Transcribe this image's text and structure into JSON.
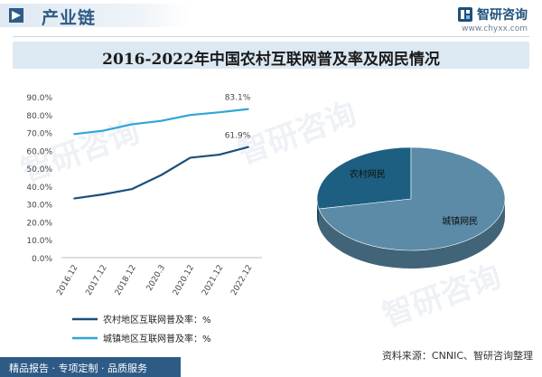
{
  "header": {
    "section_title": "产业链",
    "brand_name": "智研咨询",
    "brand_url": "www.chyxx.com"
  },
  "chart_data": [
    {
      "type": "line",
      "title": "2016-2022年中国农村互联网普及率及网民情况",
      "categories": [
        "2016.12",
        "2017.12",
        "2018.12",
        "2020.3",
        "2020.12",
        "2021.12",
        "2022.12"
      ],
      "ylim": [
        0,
        90
      ],
      "ytick_labels": [
        "0.0%",
        "10.0%",
        "20.0%",
        "30.0%",
        "40.0%",
        "50.0%",
        "60.0%",
        "70.0%",
        "80.0%",
        "90.0%"
      ],
      "series": [
        {
          "name": "农村地区互联网普及率：%",
          "values": [
            33.1,
            35.4,
            38.4,
            46.2,
            55.9,
            57.6,
            61.9
          ],
          "color": "#1b4f7a",
          "end_label": "61.9%"
        },
        {
          "name": "城镇地区互联网普及率：%",
          "values": [
            69.1,
            71.0,
            74.6,
            76.5,
            79.8,
            81.3,
            83.1
          ],
          "color": "#2ea6d6",
          "end_label": "83.1%"
        }
      ],
      "grid": false,
      "legend": "bottom-left"
    },
    {
      "type": "pie",
      "style": "3d",
      "labels": [
        "农村网民",
        "城镇网民"
      ],
      "values": [
        28.1,
        71.9
      ],
      "colors": [
        "#1d5f80",
        "#5b8ba6"
      ]
    }
  ],
  "footer": {
    "left_text": "精品报告 · 专项定制 · 品质服务",
    "source_text": "资料来源：CNNIC、智研咨询整理"
  }
}
